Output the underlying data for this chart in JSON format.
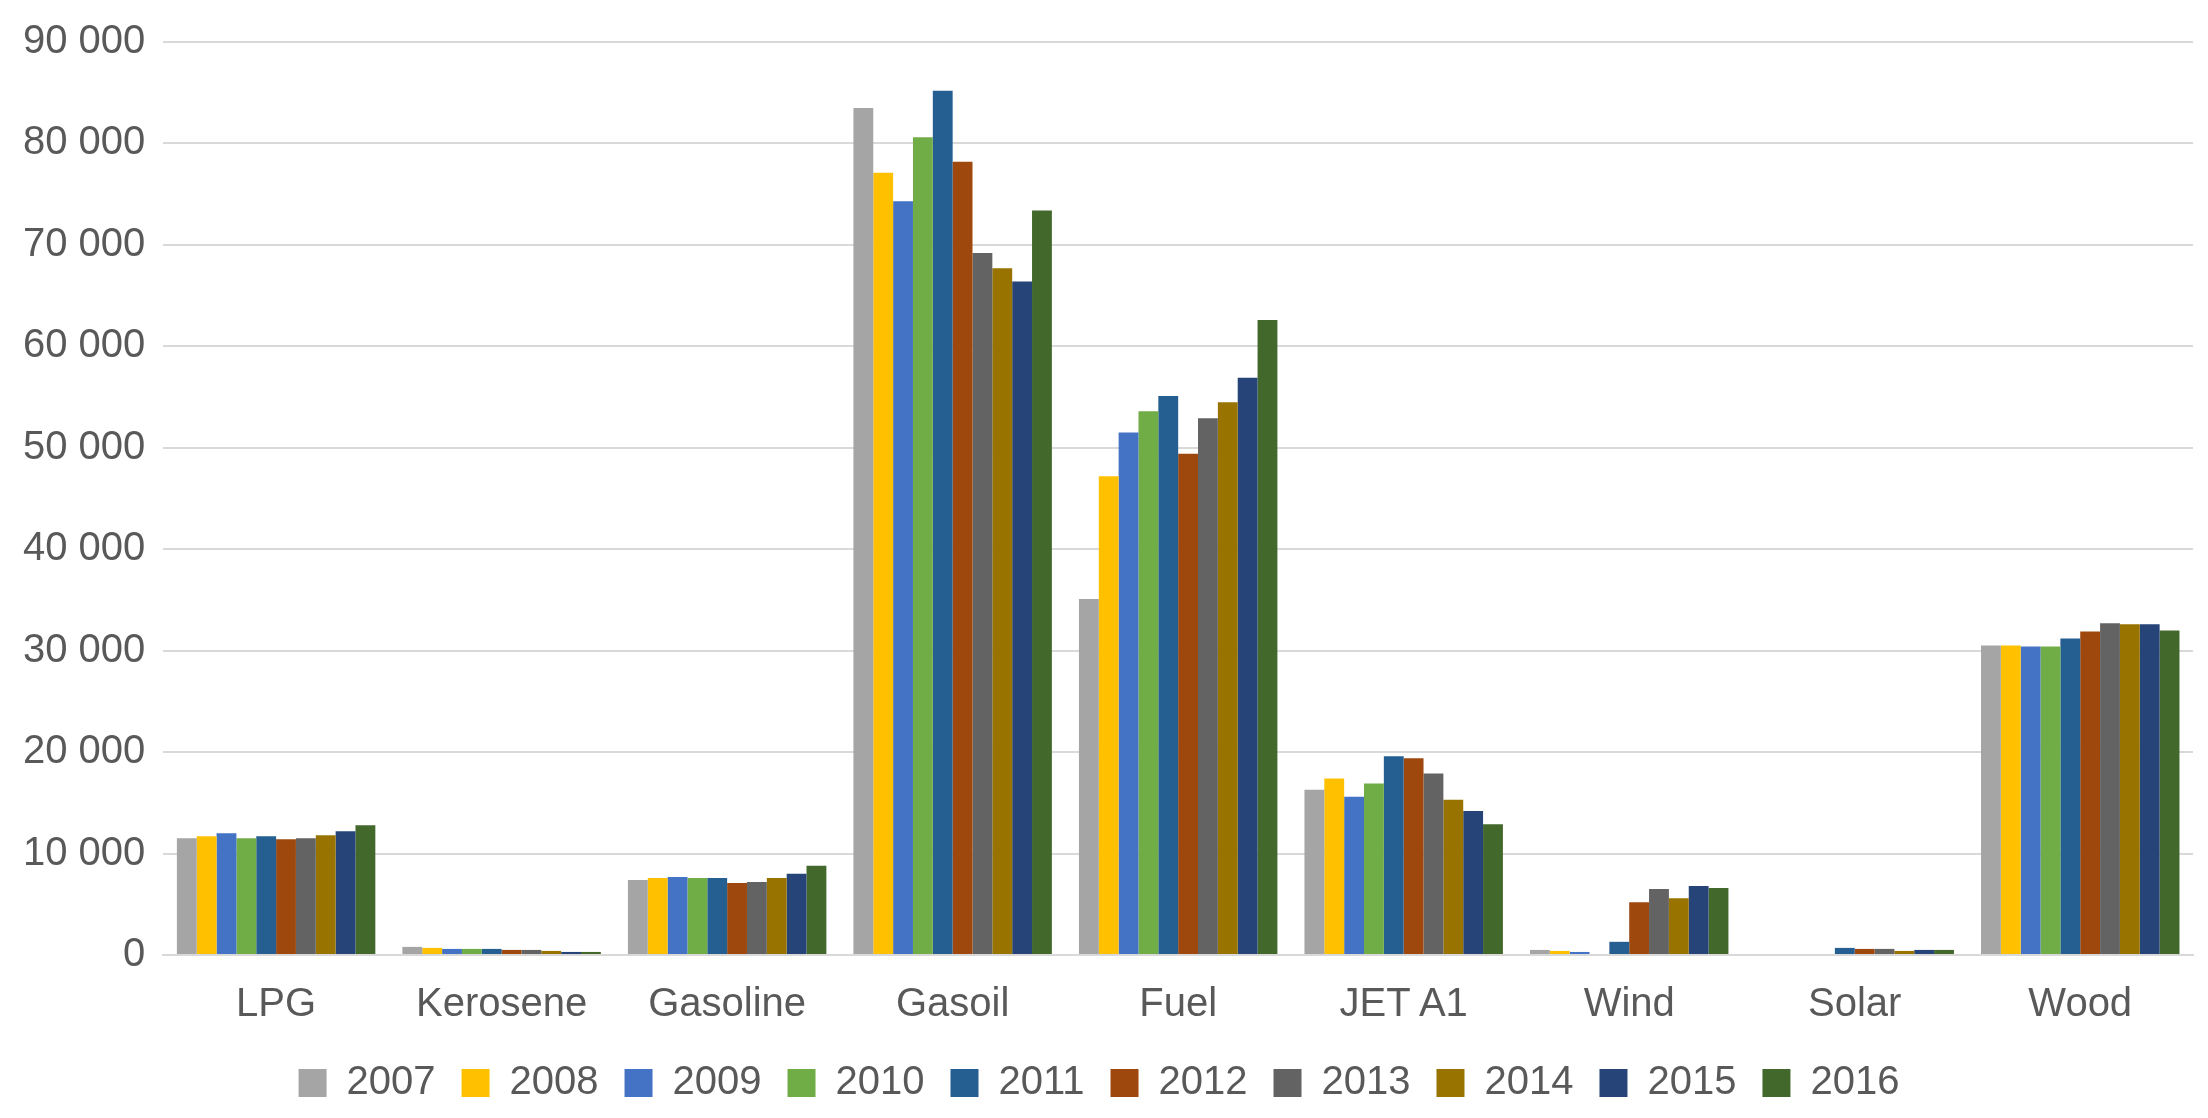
{
  "chart_data": {
    "type": "bar",
    "categories": [
      "LPG",
      "Kerosene",
      "Gasoline",
      "Gasoil",
      "Fuel",
      "JET A1",
      "Wind",
      "Solar",
      "Wood"
    ],
    "series": [
      {
        "name": "2007",
        "color": "#a5a5a5",
        "values": [
          11500,
          800,
          7400,
          83500,
          35100,
          16300,
          500,
          null,
          30500
        ]
      },
      {
        "name": "2008",
        "color": "#ffc000",
        "values": [
          11700,
          700,
          7600,
          77100,
          47200,
          17400,
          400,
          null,
          30500
        ]
      },
      {
        "name": "2009",
        "color": "#4472c4",
        "values": [
          12000,
          600,
          7700,
          74300,
          51500,
          15600,
          300,
          null,
          30400
        ]
      },
      {
        "name": "2010",
        "color": "#70ad47",
        "values": [
          11500,
          600,
          7600,
          80600,
          53600,
          16900,
          null,
          null,
          30400
        ]
      },
      {
        "name": "2011",
        "color": "#255e91",
        "values": [
          11700,
          600,
          7600,
          85200,
          55100,
          19600,
          1300,
          700,
          31200
        ]
      },
      {
        "name": "2012",
        "color": "#9e480e",
        "values": [
          11400,
          500,
          7100,
          78200,
          49400,
          19400,
          5200,
          600,
          31900
        ]
      },
      {
        "name": "2013",
        "color": "#636363",
        "values": [
          11500,
          500,
          7200,
          69200,
          52900,
          17900,
          6500,
          600,
          32700
        ]
      },
      {
        "name": "2014",
        "color": "#997300",
        "values": [
          11800,
          400,
          7600,
          67700,
          54500,
          15300,
          5600,
          400,
          32600
        ]
      },
      {
        "name": "2015",
        "color": "#264478",
        "values": [
          12200,
          300,
          8000,
          66400,
          56900,
          14200,
          6800,
          500,
          32600
        ]
      },
      {
        "name": "2016",
        "color": "#43682b",
        "values": [
          12800,
          300,
          8800,
          73400,
          62600,
          12900,
          6600,
          500,
          32000
        ]
      }
    ],
    "ylim": [
      0,
      90000
    ],
    "yticks": [
      {
        "value": 0,
        "label": "0"
      },
      {
        "value": 10000,
        "label": "10 000"
      },
      {
        "value": 20000,
        "label": "20 000"
      },
      {
        "value": 30000,
        "label": "30 000"
      },
      {
        "value": 40000,
        "label": "40 000"
      },
      {
        "value": 50000,
        "label": "50 000"
      },
      {
        "value": 60000,
        "label": "60 000"
      },
      {
        "value": 70000,
        "label": "70 000"
      },
      {
        "value": 80000,
        "label": "80 000"
      },
      {
        "value": 90000,
        "label": "90 000"
      }
    ],
    "grid": "y",
    "legend": "bottom"
  }
}
